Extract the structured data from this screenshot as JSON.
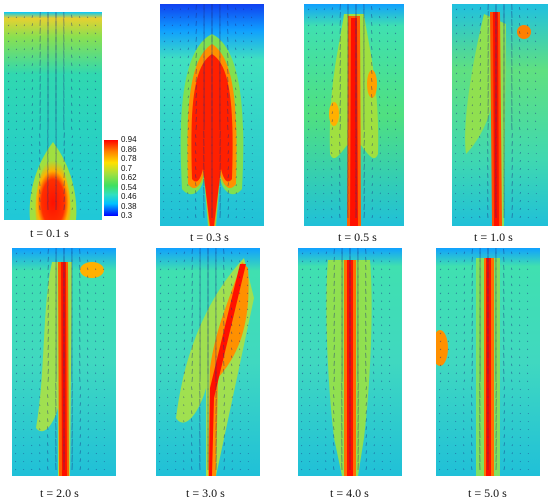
{
  "figure": {
    "panels": [
      {
        "caption": "t = 0.1 s",
        "state": "initial-bubble"
      },
      {
        "caption": "t = 0.3 s",
        "state": "rising-plume"
      },
      {
        "caption": "t = 0.5 s",
        "state": "narrow-jet"
      },
      {
        "caption": "t = 1.0 s",
        "state": "jet-with-top-vortex"
      },
      {
        "caption": "t = 2.0 s",
        "state": "developed-jet"
      },
      {
        "caption": "t = 3.0 s",
        "state": "inclined-plume"
      },
      {
        "caption": "t = 4.0 s",
        "state": "steady-jet"
      },
      {
        "caption": "t = 5.0 s",
        "state": "steady-jet-side-blob"
      }
    ],
    "colorbar": {
      "ticks": [
        "0.94",
        "0.86",
        "0.78",
        "0.7",
        "0.62",
        "0.54",
        "0.46",
        "0.38",
        "0.3"
      ],
      "range": [
        0.3,
        0.94
      ],
      "colors": [
        "#0000ff",
        "#0080ff",
        "#00d0ff",
        "#30e0c0",
        "#40e060",
        "#a0e040",
        "#ffe000",
        "#ff8000",
        "#ff0000"
      ]
    },
    "icons": [
      "velocity-vector-arrow"
    ]
  }
}
